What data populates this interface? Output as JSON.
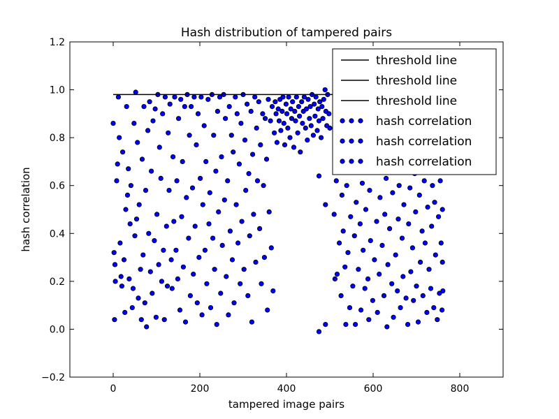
{
  "chart_data": {
    "type": "scatter",
    "title": "Hash distribution of tampered pairs",
    "xlabel": "tampered image pairs",
    "ylabel": "hash correlation",
    "xlim": [
      -100,
      900
    ],
    "ylim": [
      -0.2,
      1.2
    ],
    "xticks": [
      "0",
      "200",
      "400",
      "600",
      "800"
    ],
    "yticks": [
      "−0.2",
      "0.0",
      "0.2",
      "0.4",
      "0.6",
      "0.8",
      "1.0",
      "1.2"
    ],
    "xtick_values": [
      0,
      200,
      400,
      600,
      800
    ],
    "ytick_values": [
      -0.2,
      0.0,
      0.2,
      0.4,
      0.6,
      0.8,
      1.0,
      1.2
    ],
    "grid": false,
    "legend_position": "upper-right",
    "marker_color": "#0000ff",
    "line_color": "#000000",
    "threshold": {
      "x": [
        0,
        760
      ],
      "y": 0.98
    },
    "legend": [
      {
        "label": "threshold line",
        "kind": "line"
      },
      {
        "label": "threshold line",
        "kind": "line"
      },
      {
        "label": "threshold line",
        "kind": "line"
      },
      {
        "label": "hash correlation",
        "kind": "points"
      },
      {
        "label": "hash correlation",
        "kind": "points"
      },
      {
        "label": "hash correlation",
        "kind": "points"
      }
    ],
    "points": [
      [
        0,
        0.86
      ],
      [
        2,
        0.32
      ],
      [
        3,
        0.04
      ],
      [
        4,
        0.27
      ],
      [
        5,
        0.2
      ],
      [
        8,
        0.62
      ],
      [
        10,
        0.69
      ],
      [
        12,
        0.97
      ],
      [
        14,
        0.8
      ],
      [
        16,
        0.36
      ],
      [
        18,
        0.22
      ],
      [
        20,
        0.18
      ],
      [
        22,
        0.74
      ],
      [
        25,
        0.29
      ],
      [
        27,
        0.07
      ],
      [
        29,
        0.5
      ],
      [
        31,
        0.93
      ],
      [
        33,
        0.56
      ],
      [
        35,
        0.67
      ],
      [
        37,
        0.21
      ],
      [
        39,
        0.44
      ],
      [
        41,
        0.6
      ],
      [
        44,
        0.09
      ],
      [
        46,
        0.17
      ],
      [
        48,
        0.86
      ],
      [
        50,
        0.39
      ],
      [
        52,
        0.99
      ],
      [
        54,
        0.46
      ],
      [
        56,
        0.78
      ],
      [
        58,
        0.13
      ],
      [
        60,
        0.52
      ],
      [
        63,
        0.25
      ],
      [
        65,
        0.04
      ],
      [
        67,
        0.71
      ],
      [
        69,
        0.31
      ],
      [
        71,
        0.93
      ],
      [
        73,
        0.11
      ],
      [
        75,
        0.58
      ],
      [
        77,
        0.01
      ],
      [
        80,
        0.83
      ],
      [
        82,
        0.4
      ],
      [
        84,
        0.95
      ],
      [
        86,
        0.24
      ],
      [
        88,
        0.66
      ],
      [
        90,
        0.15
      ],
      [
        92,
        0.87
      ],
      [
        95,
        0.37
      ],
      [
        97,
        0.92
      ],
      [
        99,
        0.05
      ],
      [
        101,
        0.48
      ],
      [
        103,
        0.98
      ],
      [
        105,
        0.27
      ],
      [
        107,
        0.76
      ],
      [
        110,
        0.63
      ],
      [
        112,
        0.2
      ],
      [
        114,
        0.9
      ],
      [
        116,
        0.33
      ],
      [
        118,
        0.04
      ],
      [
        120,
        0.97
      ],
      [
        123,
        0.43
      ],
      [
        125,
        0.18
      ],
      [
        127,
        0.82
      ],
      [
        129,
        0.58
      ],
      [
        131,
        0.94
      ],
      [
        134,
        0.29
      ],
      [
        136,
        0.17
      ],
      [
        138,
        0.72
      ],
      [
        140,
        0.45
      ],
      [
        142,
        0.97
      ],
      [
        145,
        0.33
      ],
      [
        147,
        0.62
      ],
      [
        149,
        0.21
      ],
      [
        151,
        0.88
      ],
      [
        154,
        0.08
      ],
      [
        156,
        0.96
      ],
      [
        158,
        0.47
      ],
      [
        160,
        0.7
      ],
      [
        162,
        0.26
      ],
      [
        165,
        0.93
      ],
      [
        167,
        0.03
      ],
      [
        169,
        0.55
      ],
      [
        171,
        0.98
      ],
      [
        174,
        0.38
      ],
      [
        176,
        0.81
      ],
      [
        178,
        0.14
      ],
      [
        180,
        0.93
      ],
      [
        183,
        0.59
      ],
      [
        185,
        0.23
      ],
      [
        187,
        0.97
      ],
      [
        189,
        0.43
      ],
      [
        192,
        0.77
      ],
      [
        194,
        0.11
      ],
      [
        196,
        0.9
      ],
      [
        198,
        0.3
      ],
      [
        201,
        0.63
      ],
      [
        203,
        0.97
      ],
      [
        205,
        0.06
      ],
      [
        207,
        0.52
      ],
      [
        210,
        0.85
      ],
      [
        212,
        0.33
      ],
      [
        214,
        0.7
      ],
      [
        216,
        0.19
      ],
      [
        219,
        0.96
      ],
      [
        221,
        0.44
      ],
      [
        223,
        0.57
      ],
      [
        225,
        0.09
      ],
      [
        228,
        0.98
      ],
      [
        230,
        0.38
      ],
      [
        232,
        0.81
      ],
      [
        234,
        0.25
      ],
      [
        237,
        0.66
      ],
      [
        239,
        0.02
      ],
      [
        241,
        0.91
      ],
      [
        243,
        0.49
      ],
      [
        246,
        0.97
      ],
      [
        248,
        0.15
      ],
      [
        250,
        0.72
      ],
      [
        252,
        0.35
      ],
      [
        255,
        0.98
      ],
      [
        257,
        0.54
      ],
      [
        259,
        0.88
      ],
      [
        261,
        0.22
      ],
      [
        264,
        0.62
      ],
      [
        266,
        0.06
      ],
      [
        268,
        0.93
      ],
      [
        270,
        0.41
      ],
      [
        273,
        0.81
      ],
      [
        275,
        0.29
      ],
      [
        277,
        0.74
      ],
      [
        279,
        0.11
      ],
      [
        282,
        0.97
      ],
      [
        284,
        0.52
      ],
      [
        286,
        0.9
      ],
      [
        288,
        0.36
      ],
      [
        291,
        0.69
      ],
      [
        293,
        0.19
      ],
      [
        295,
        0.86
      ],
      [
        297,
        0.45
      ],
      [
        300,
        0.98
      ],
      [
        302,
        0.25
      ],
      [
        304,
        0.79
      ],
      [
        306,
        0.58
      ],
      [
        309,
        0.94
      ],
      [
        311,
        0.14
      ],
      [
        313,
        0.65
      ],
      [
        315,
        0.39
      ],
      [
        318,
        0.91
      ],
      [
        320,
        0.03
      ],
      [
        322,
        0.73
      ],
      [
        324,
        0.48
      ],
      [
        327,
        0.97
      ],
      [
        329,
        0.28
      ],
      [
        331,
        0.84
      ],
      [
        333,
        0.62
      ],
      [
        336,
        0.95
      ],
      [
        338,
        0.42
      ],
      [
        340,
        0.77
      ],
      [
        342,
        0.19
      ],
      [
        345,
        0.9
      ],
      [
        347,
        0.6
      ],
      [
        349,
        0.3
      ],
      [
        351,
        0.88
      ],
      [
        354,
        0.71
      ],
      [
        356,
        0.08
      ],
      [
        358,
        0.96
      ],
      [
        360,
        0.49
      ],
      [
        363,
        0.87
      ],
      [
        365,
        0.34
      ],
      [
        367,
        0.93
      ],
      [
        369,
        0.16
      ],
      [
        372,
        0.82
      ],
      [
        374,
        0.95
      ],
      [
        376,
        0.9
      ],
      [
        378,
        0.78
      ],
      [
        381,
        0.92
      ],
      [
        383,
        0.87
      ],
      [
        385,
        0.96
      ],
      [
        387,
        0.83
      ],
      [
        390,
        0.91
      ],
      [
        392,
        0.97
      ],
      [
        394,
        0.86
      ],
      [
        396,
        0.77
      ],
      [
        399,
        0.94
      ],
      [
        401,
        0.9
      ],
      [
        403,
        0.84
      ],
      [
        405,
        0.97
      ],
      [
        408,
        0.8
      ],
      [
        410,
        0.92
      ],
      [
        412,
        0.88
      ],
      [
        414,
        0.95
      ],
      [
        417,
        0.76
      ],
      [
        419,
        0.91
      ],
      [
        421,
        0.87
      ],
      [
        423,
        0.97
      ],
      [
        426,
        0.82
      ],
      [
        428,
        0.93
      ],
      [
        430,
        0.89
      ],
      [
        432,
        0.74
      ],
      [
        435,
        0.95
      ],
      [
        437,
        0.86
      ],
      [
        439,
        0.91
      ],
      [
        441,
        0.97
      ],
      [
        444,
        0.84
      ],
      [
        446,
        0.92
      ],
      [
        448,
        0.79
      ],
      [
        450,
        0.96
      ],
      [
        453,
        0.88
      ],
      [
        455,
        0.93
      ],
      [
        457,
        0.85
      ],
      [
        459,
        0.98
      ],
      [
        462,
        0.81
      ],
      [
        464,
        0.94
      ],
      [
        466,
        0.89
      ],
      [
        468,
        0.97
      ],
      [
        471,
        0.83
      ],
      [
        473,
        0.92
      ],
      [
        475,
        0.87
      ],
      [
        477,
        0.95
      ],
      [
        480,
        0.8
      ],
      [
        482,
        0.93
      ],
      [
        484,
        0.88
      ],
      [
        486,
        0.96
      ],
      [
        489,
        1.0
      ],
      [
        491,
        0.91
      ],
      [
        493,
        0.85
      ],
      [
        495,
        0.98
      ],
      [
        498,
        0.9
      ],
      [
        500,
        0.84
      ],
      [
        475,
        0.64
      ],
      [
        490,
        0.52
      ],
      [
        475,
        -0.01
      ],
      [
        490,
        0.02
      ],
      [
        510,
        0.48
      ],
      [
        512,
        0.21
      ],
      [
        515,
        0.62
      ],
      [
        517,
        0.23
      ],
      [
        520,
        0.95
      ],
      [
        522,
        0.36
      ],
      [
        524,
        0.88
      ],
      [
        526,
        0.14
      ],
      [
        528,
        0.56
      ],
      [
        531,
        0.41
      ],
      [
        533,
        0.76
      ],
      [
        535,
        0.26
      ],
      [
        537,
        0.02
      ],
      [
        539,
        0.6
      ],
      [
        542,
        0.32
      ],
      [
        544,
        0.85
      ],
      [
        546,
        0.09
      ],
      [
        548,
        0.47
      ],
      [
        550,
        0.67
      ],
      [
        553,
        0.18
      ],
      [
        555,
        0.9
      ],
      [
        557,
        0.39
      ],
      [
        559,
        0.02
      ],
      [
        561,
        0.53
      ],
      [
        564,
        0.72
      ],
      [
        566,
        0.25
      ],
      [
        568,
        0.94
      ],
      [
        570,
        0.44
      ],
      [
        572,
        0.08
      ],
      [
        575,
        0.61
      ],
      [
        577,
        0.33
      ],
      [
        579,
        0.86
      ],
      [
        581,
        0.17
      ],
      [
        583,
        0.5
      ],
      [
        586,
        0.77
      ],
      [
        588,
        0.21
      ],
      [
        590,
        0.04
      ],
      [
        592,
        0.58
      ],
      [
        594,
        0.37
      ],
      [
        597,
        0.92
      ],
      [
        599,
        0.12
      ],
      [
        601,
        0.66
      ],
      [
        603,
        0.29
      ],
      [
        605,
        0.83
      ],
      [
        608,
        0.45
      ],
      [
        610,
        0.07
      ],
      [
        612,
        0.71
      ],
      [
        614,
        0.23
      ],
      [
        616,
        0.55
      ],
      [
        619,
        0.96
      ],
      [
        621,
        0.35
      ],
      [
        623,
        0.79
      ],
      [
        625,
        0.14
      ],
      [
        627,
        0.48
      ],
      [
        630,
        0.63
      ],
      [
        632,
        0.01
      ],
      [
        634,
        0.27
      ],
      [
        636,
        0.88
      ],
      [
        638,
        0.42
      ],
      [
        641,
        0.68
      ],
      [
        643,
        0.19
      ],
      [
        645,
        0.57
      ],
      [
        647,
        0.05
      ],
      [
        649,
        0.84
      ],
      [
        652,
        0.31
      ],
      [
        654,
        0.74
      ],
      [
        656,
        0.16
      ],
      [
        658,
        0.46
      ],
      [
        660,
        0.6
      ],
      [
        663,
        0.09
      ],
      [
        665,
        0.93
      ],
      [
        667,
        0.38
      ],
      [
        669,
        0.22
      ],
      [
        671,
        0.52
      ],
      [
        674,
        0.81
      ],
      [
        676,
        0.13
      ],
      [
        678,
        0.67
      ],
      [
        680,
        0.02
      ],
      [
        682,
        0.44
      ],
      [
        685,
        0.59
      ],
      [
        687,
        0.24
      ],
      [
        689,
        0.87
      ],
      [
        691,
        0.34
      ],
      [
        693,
        0.12
      ],
      [
        696,
        0.65
      ],
      [
        698,
        0.49
      ],
      [
        700,
        0.18
      ],
      [
        702,
        0.78
      ],
      [
        704,
        0.03
      ],
      [
        707,
        0.56
      ],
      [
        709,
        0.28
      ],
      [
        711,
        0.92
      ],
      [
        713,
        0.41
      ],
      [
        715,
        0.14
      ],
      [
        718,
        0.62
      ],
      [
        720,
        0.36
      ],
      [
        722,
        0.82
      ],
      [
        724,
        0.07
      ],
      [
        726,
        0.51
      ],
      [
        729,
        0.25
      ],
      [
        731,
        0.71
      ],
      [
        733,
        0.17
      ],
      [
        735,
        0.43
      ],
      [
        737,
        0.6
      ],
      [
        740,
        0.09
      ],
      [
        742,
        0.53
      ],
      [
        744,
        0.31
      ],
      [
        746,
        0.78
      ],
      [
        748,
        0.04
      ],
      [
        751,
        0.47
      ],
      [
        753,
        0.15
      ],
      [
        755,
        0.62
      ],
      [
        757,
        0.36
      ],
      [
        759,
        0.08
      ],
      [
        760,
        0.28
      ],
      [
        760,
        0.5
      ],
      [
        761,
        0.16
      ],
      [
        761,
        0.66
      ]
    ]
  }
}
